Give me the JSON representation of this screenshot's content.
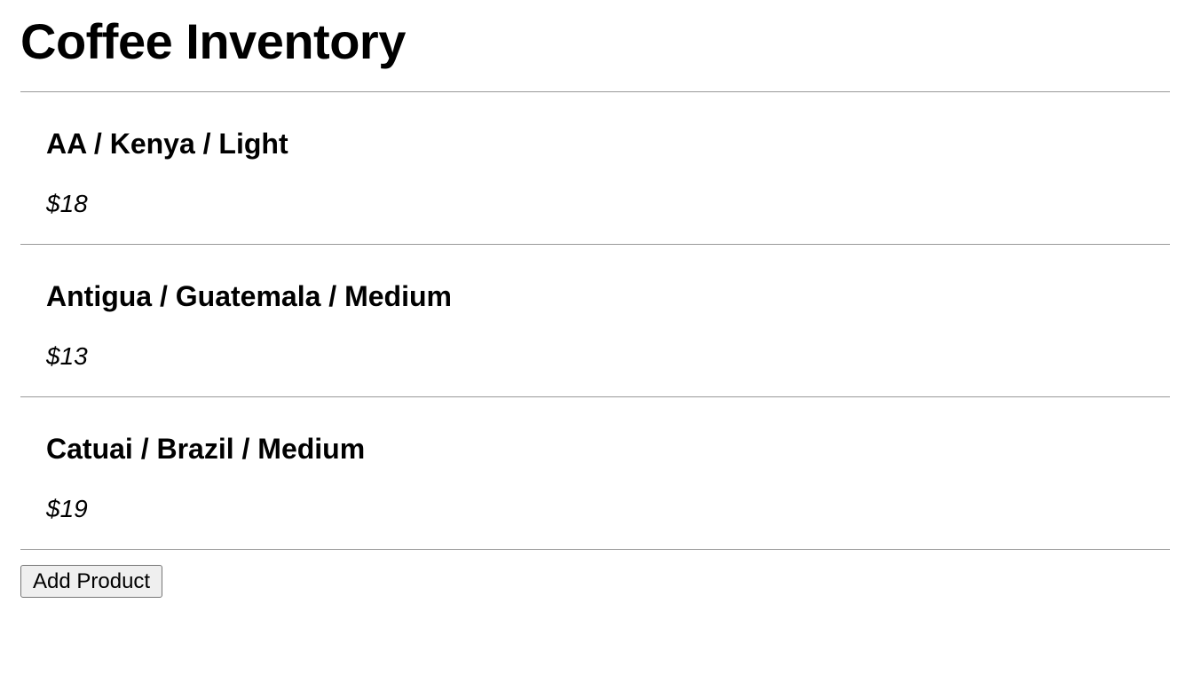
{
  "page": {
    "title": "Coffee Inventory"
  },
  "products": [
    {
      "name": "AA / Kenya / Light",
      "price": "$18"
    },
    {
      "name": "Antigua / Guatemala / Medium",
      "price": "$13"
    },
    {
      "name": "Catuai / Brazil / Medium",
      "price": "$19"
    }
  ],
  "actions": {
    "add_label": "Add Product"
  },
  "colors": {
    "divider": "#999999",
    "button_bg": "#efefef",
    "button_border": "#767676"
  }
}
